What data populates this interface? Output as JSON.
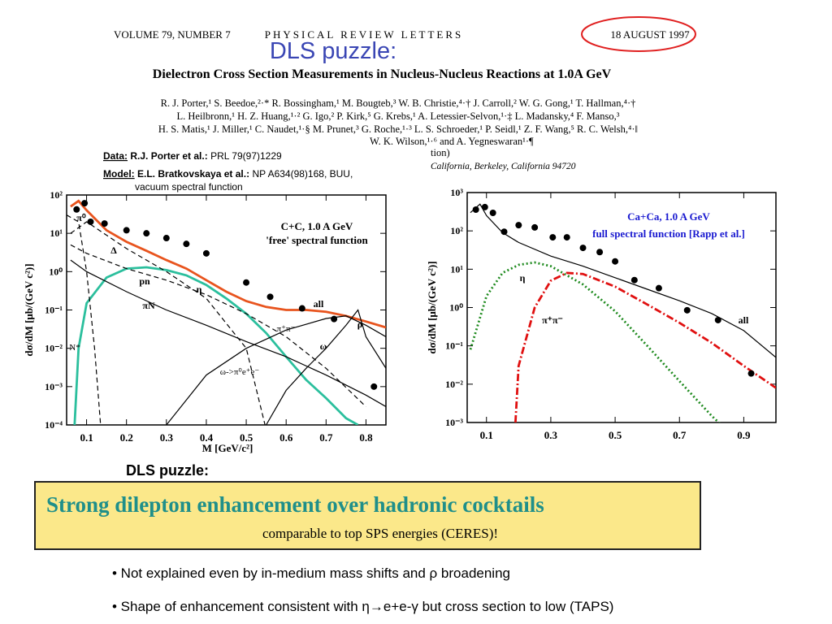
{
  "header": {
    "volume": "VOLUME 79, NUMBER 7",
    "journal": "PHYSICAL REVIEW LETTERS",
    "date": "18 AUGUST 1997"
  },
  "title": "DLS puzzle:",
  "paper_title": "Dielectron Cross Section Measurements in Nucleus-Nucleus Reactions at 1.0A GeV",
  "authors": [
    "R. J. Porter,¹ S. Beedoe,²·* R. Bossingham,¹ M. Bougteb,³ W. B. Christie,⁴·† J. Carroll,² W. G. Gong,¹ T. Hallman,⁴·†",
    "L. Heilbronn,¹ H. Z. Huang,¹·² G. Igo,² P. Kirk,⁵ G. Krebs,¹ A. Letessier-Selvon,¹·‡ L. Madansky,⁴ F. Manso,³",
    "H. S. Matis,¹ J. Miller,¹ C. Naudet,¹·§ M. Prunet,³ G. Roche,¹·³ L. S. Schroeder,¹ P. Seidl,¹ Z. F. Wang,⁵ R. C. Welsh,⁴·‖",
    "W. K. Wilson,¹·⁶ and A. Yegneswaran¹·¶"
  ],
  "affiliation_fragments": [
    "tion)",
    "California, Berkeley, California 94720"
  ],
  "references": {
    "data": {
      "key": "Data:",
      "authors": "R.J. Porter et al.:",
      "ref": "PRL 79(97)1229"
    },
    "model": {
      "key": "Model:",
      "authors": "E.L. Bratkovskaya et al.:",
      "ref": "NP A634(98)168, BUU,",
      "note": "vacuum spectral function"
    }
  },
  "chart_data": [
    {
      "type": "line",
      "log_y": true,
      "xlabel": "M [GeV/c²]",
      "ylabel": "dσ/dM  [μb/(GeV c²)]",
      "xlim": [
        0.05,
        0.85
      ],
      "ylim": [
        0.0001,
        100
      ],
      "xticks": [
        0.1,
        0.2,
        0.3,
        0.4,
        0.5,
        0.6,
        0.7,
        0.8
      ],
      "yticks": [
        {
          "value": 0.0001,
          "label": "10⁻⁴"
        },
        {
          "value": 0.001,
          "label": "10⁻³"
        },
        {
          "value": 0.01,
          "label": "10⁻²"
        },
        {
          "value": 0.1,
          "label": "10⁻¹"
        },
        {
          "value": 1,
          "label": "10⁰"
        },
        {
          "value": 10,
          "label": "10¹"
        },
        {
          "value": 100,
          "label": "10²"
        }
      ],
      "annotations": [
        "C+C, 1.0 A GeV",
        "'free' spectral function",
        "π⁺π⁻",
        "ω->π⁰e⁺e⁻",
        "N*"
      ],
      "series": [
        {
          "type": "scatter",
          "color": "#000000",
          "x": [
            0.075,
            0.095,
            0.11,
            0.145,
            0.2,
            0.25,
            0.3,
            0.35,
            0.4,
            0.5,
            0.56,
            0.64,
            0.72,
            0.82
          ],
          "values": [
            42,
            61,
            20,
            18,
            12,
            10,
            7.5,
            5.3,
            3,
            0.52,
            0.22,
            0.11,
            0.058,
            0.001
          ]
        },
        {
          "name": "all",
          "type": "line",
          "color": "#e8541e",
          "style": "solid",
          "x": [
            0.06,
            0.08,
            0.1,
            0.15,
            0.2,
            0.25,
            0.3,
            0.35,
            0.4,
            0.45,
            0.5,
            0.55,
            0.6,
            0.65,
            0.7,
            0.75,
            0.8,
            0.85
          ],
          "values": [
            50,
            70,
            40,
            12,
            6,
            3.5,
            2,
            1.2,
            0.6,
            0.3,
            0.17,
            0.12,
            0.1,
            0.1,
            0.09,
            0.07,
            0.05,
            0.035
          ]
        },
        {
          "name": "pn",
          "type": "line",
          "color": "#2bbf9d",
          "style": "solid",
          "x": [
            0.07,
            0.08,
            0.1,
            0.15,
            0.2,
            0.25,
            0.3,
            0.35,
            0.4,
            0.45,
            0.5,
            0.55,
            0.6,
            0.65,
            0.7,
            0.75,
            0.78
          ],
          "values": [
            0.0001,
            0.01,
            0.15,
            0.7,
            1.2,
            1.3,
            1.1,
            0.8,
            0.45,
            0.2,
            0.08,
            0.025,
            0.006,
            0.0015,
            0.0005,
            0.00015,
            0.0001
          ]
        },
        {
          "name": "η",
          "type": "line",
          "color": "#000000",
          "style": "dashed",
          "x": [
            0.06,
            0.1,
            0.2,
            0.3,
            0.4,
            0.5,
            0.547
          ],
          "values": [
            10,
            20,
            4,
            1,
            0.2,
            0.01,
            0.0001
          ]
        },
        {
          "name": "π⁰",
          "type": "line",
          "color": "#000000",
          "style": "dashed",
          "x": [
            0.05,
            0.08,
            0.1,
            0.12,
            0.135
          ],
          "values": [
            30,
            20,
            1,
            0.01,
            0.0001
          ]
        },
        {
          "name": "Δ",
          "type": "line",
          "color": "#000000",
          "style": "dashed",
          "x": [
            0.06,
            0.1,
            0.2,
            0.3,
            0.4,
            0.5,
            0.6,
            0.7,
            0.8
          ],
          "values": [
            5,
            3,
            1.2,
            0.6,
            0.25,
            0.08,
            0.02,
            0.003,
            0.0003
          ]
        },
        {
          "name": "πN",
          "type": "line",
          "color": "#000000",
          "style": "solid",
          "x": [
            0.06,
            0.1,
            0.2,
            0.3,
            0.4,
            0.5,
            0.6,
            0.7,
            0.8,
            0.85
          ],
          "values": [
            2,
            1,
            0.3,
            0.1,
            0.04,
            0.015,
            0.006,
            0.002,
            0.0006,
            0.0003
          ]
        },
        {
          "name": "ρ",
          "type": "line",
          "color": "#000000",
          "style": "solid",
          "x": [
            0.3,
            0.4,
            0.5,
            0.6,
            0.7,
            0.75,
            0.8,
            0.85
          ],
          "values": [
            0.0001,
            0.002,
            0.01,
            0.03,
            0.06,
            0.07,
            0.04,
            0.02
          ]
        },
        {
          "name": "ω",
          "type": "line",
          "color": "#000000",
          "style": "solid",
          "x": [
            0.55,
            0.6,
            0.65,
            0.7,
            0.75,
            0.78,
            0.8,
            0.85
          ],
          "values": [
            0.0001,
            0.0008,
            0.003,
            0.01,
            0.04,
            0.1,
            0.02,
            0.003
          ]
        }
      ]
    },
    {
      "type": "line",
      "log_y": true,
      "ylabel": "dσ/dM  [μb/(GeV c²)]",
      "xlim": [
        0.04,
        1.0
      ],
      "ylim": [
        0.001,
        1000
      ],
      "xticks": [
        0.1,
        0.3,
        0.5,
        0.7,
        0.9
      ],
      "yticks": [
        {
          "value": 0.001,
          "label": "10⁻³"
        },
        {
          "value": 0.01,
          "label": "10⁻²"
        },
        {
          "value": 0.1,
          "label": "10⁻¹"
        },
        {
          "value": 1,
          "label": "10⁰"
        },
        {
          "value": 10,
          "label": "10¹"
        },
        {
          "value": 100,
          "label": "10²"
        },
        {
          "value": 1000,
          "label": "10³"
        }
      ],
      "annotations": [
        "Ca+Ca,  1.0 A GeV",
        "full spectral function [Rapp et al.]"
      ],
      "series": [
        {
          "type": "scatter",
          "color": "#000000",
          "x": [
            0.067,
            0.095,
            0.12,
            0.155,
            0.2,
            0.25,
            0.306,
            0.35,
            0.4,
            0.452,
            0.5,
            0.56,
            0.636,
            0.724,
            0.82,
            0.923
          ],
          "values": [
            359,
            417,
            295,
            95,
            141,
            123,
            68,
            68,
            36,
            28,
            16,
            5.2,
            3.2,
            0.85,
            0.47,
            0.019
          ]
        },
        {
          "name": "all",
          "type": "line",
          "color": "#000000",
          "style": "solid",
          "x": [
            0.05,
            0.08,
            0.1,
            0.15,
            0.2,
            0.3,
            0.4,
            0.5,
            0.6,
            0.7,
            0.8,
            0.9,
            1.0
          ],
          "values": [
            300,
            500,
            250,
            90,
            50,
            22,
            12,
            6,
            3,
            1.5,
            0.7,
            0.25,
            0.05
          ]
        },
        {
          "name": "η",
          "type": "line",
          "color": "#1e8a1e",
          "style": "dotted",
          "x": [
            0.05,
            0.1,
            0.15,
            0.2,
            0.25,
            0.3,
            0.4,
            0.5,
            0.6,
            0.7,
            0.8,
            0.86
          ],
          "values": [
            0.08,
            2,
            8,
            13,
            15,
            12,
            4,
            0.8,
            0.1,
            0.012,
            0.0015,
            0.0005
          ]
        },
        {
          "name": "π⁺π⁻",
          "type": "line",
          "color": "#e01010",
          "style": "dashdot",
          "x": [
            0.19,
            0.2,
            0.25,
            0.3,
            0.35,
            0.4,
            0.5,
            0.6,
            0.7,
            0.8,
            0.9,
            1.0
          ],
          "values": [
            0.001,
            0.03,
            1,
            5,
            8,
            7.5,
            3.5,
            1.2,
            0.4,
            0.12,
            0.03,
            0.008
          ]
        }
      ]
    }
  ],
  "callout": {
    "heading": "DLS puzzle:",
    "main": "Strong dilepton enhancement over hadronic cocktails",
    "sub": "comparable to top SPS energies (CERES)!"
  },
  "bullets": [
    "• Not explained even by in-medium mass shifts and ρ  broadening",
    "• Shape of enhancement consistent with η→e+e-γ but cross section to low  (TAPS)"
  ]
}
